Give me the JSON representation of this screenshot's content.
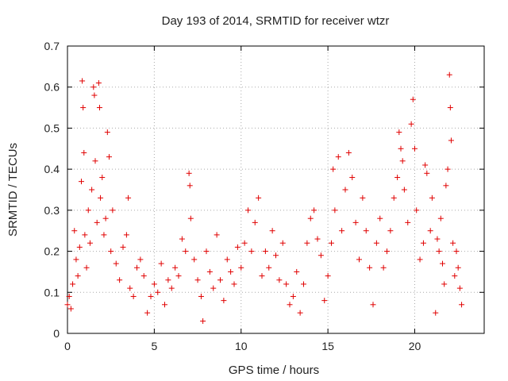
{
  "chart_data": {
    "type": "scatter",
    "title": "Day 193 of 2014, SRMTID for receiver wtzr",
    "xlabel": "GPS time / hours",
    "ylabel": "SRMTID / TECUs",
    "xlim": [
      0,
      24
    ],
    "ylim": [
      0,
      0.7
    ],
    "xticks": [
      0,
      5,
      10,
      15,
      20
    ],
    "xtick_labels": [
      "0",
      "5",
      "10",
      "15",
      "20"
    ],
    "yticks": [
      0,
      0.1,
      0.2,
      0.3,
      0.4,
      0.5,
      0.6,
      0.7
    ],
    "ytick_labels": [
      "0",
      "0.1",
      "0.2",
      "0.3",
      "0.4",
      "0.5",
      "0.6",
      "0.7"
    ],
    "grid": true,
    "marker": "+",
    "color": "#e00000",
    "series": [
      {
        "name": "wtzr",
        "points": [
          [
            0.0,
            0.07
          ],
          [
            0.1,
            0.09
          ],
          [
            0.2,
            0.06
          ],
          [
            0.3,
            0.12
          ],
          [
            0.4,
            0.25
          ],
          [
            0.5,
            0.18
          ],
          [
            0.6,
            0.14
          ],
          [
            0.7,
            0.21
          ],
          [
            0.8,
            0.37
          ],
          [
            0.85,
            0.615
          ],
          [
            0.9,
            0.55
          ],
          [
            0.95,
            0.44
          ],
          [
            1.0,
            0.24
          ],
          [
            1.1,
            0.16
          ],
          [
            1.2,
            0.3
          ],
          [
            1.3,
            0.22
          ],
          [
            1.4,
            0.35
          ],
          [
            1.5,
            0.6
          ],
          [
            1.55,
            0.58
          ],
          [
            1.6,
            0.42
          ],
          [
            1.7,
            0.27
          ],
          [
            1.8,
            0.61
          ],
          [
            1.85,
            0.55
          ],
          [
            1.9,
            0.33
          ],
          [
            2.0,
            0.38
          ],
          [
            2.1,
            0.24
          ],
          [
            2.2,
            0.28
          ],
          [
            2.3,
            0.49
          ],
          [
            2.4,
            0.43
          ],
          [
            2.5,
            0.2
          ],
          [
            2.6,
            0.3
          ],
          [
            2.8,
            0.17
          ],
          [
            3.0,
            0.13
          ],
          [
            3.2,
            0.21
          ],
          [
            3.4,
            0.24
          ],
          [
            3.5,
            0.33
          ],
          [
            3.6,
            0.11
          ],
          [
            3.8,
            0.09
          ],
          [
            4.0,
            0.16
          ],
          [
            4.2,
            0.18
          ],
          [
            4.4,
            0.14
          ],
          [
            4.6,
            0.05
          ],
          [
            4.8,
            0.09
          ],
          [
            5.0,
            0.12
          ],
          [
            5.2,
            0.1
          ],
          [
            5.4,
            0.17
          ],
          [
            5.6,
            0.07
          ],
          [
            5.8,
            0.13
          ],
          [
            6.0,
            0.11
          ],
          [
            6.2,
            0.16
          ],
          [
            6.4,
            0.14
          ],
          [
            6.6,
            0.23
          ],
          [
            6.8,
            0.2
          ],
          [
            7.0,
            0.39
          ],
          [
            7.05,
            0.36
          ],
          [
            7.1,
            0.28
          ],
          [
            7.3,
            0.18
          ],
          [
            7.5,
            0.13
          ],
          [
            7.7,
            0.09
          ],
          [
            7.8,
            0.03
          ],
          [
            8.0,
            0.2
          ],
          [
            8.2,
            0.15
          ],
          [
            8.4,
            0.11
          ],
          [
            8.6,
            0.24
          ],
          [
            8.8,
            0.13
          ],
          [
            9.0,
            0.08
          ],
          [
            9.2,
            0.18
          ],
          [
            9.4,
            0.15
          ],
          [
            9.6,
            0.12
          ],
          [
            9.8,
            0.21
          ],
          [
            10.0,
            0.16
          ],
          [
            10.2,
            0.22
          ],
          [
            10.4,
            0.3
          ],
          [
            10.6,
            0.2
          ],
          [
            10.8,
            0.27
          ],
          [
            11.0,
            0.33
          ],
          [
            11.2,
            0.14
          ],
          [
            11.4,
            0.2
          ],
          [
            11.6,
            0.16
          ],
          [
            11.8,
            0.25
          ],
          [
            12.0,
            0.19
          ],
          [
            12.2,
            0.13
          ],
          [
            12.4,
            0.22
          ],
          [
            12.6,
            0.12
          ],
          [
            12.8,
            0.07
          ],
          [
            13.0,
            0.09
          ],
          [
            13.2,
            0.15
          ],
          [
            13.4,
            0.05
          ],
          [
            13.6,
            0.12
          ],
          [
            13.8,
            0.22
          ],
          [
            14.0,
            0.28
          ],
          [
            14.2,
            0.3
          ],
          [
            14.4,
            0.23
          ],
          [
            14.6,
            0.19
          ],
          [
            14.8,
            0.08
          ],
          [
            15.0,
            0.14
          ],
          [
            15.2,
            0.22
          ],
          [
            15.3,
            0.4
          ],
          [
            15.4,
            0.3
          ],
          [
            15.6,
            0.43
          ],
          [
            15.8,
            0.25
          ],
          [
            16.0,
            0.35
          ],
          [
            16.2,
            0.44
          ],
          [
            16.4,
            0.38
          ],
          [
            16.6,
            0.27
          ],
          [
            16.8,
            0.18
          ],
          [
            17.0,
            0.33
          ],
          [
            17.2,
            0.25
          ],
          [
            17.4,
            0.16
          ],
          [
            17.6,
            0.07
          ],
          [
            17.8,
            0.22
          ],
          [
            18.0,
            0.28
          ],
          [
            18.2,
            0.16
          ],
          [
            18.4,
            0.2
          ],
          [
            18.6,
            0.25
          ],
          [
            18.8,
            0.33
          ],
          [
            19.0,
            0.38
          ],
          [
            19.1,
            0.49
          ],
          [
            19.2,
            0.45
          ],
          [
            19.3,
            0.42
          ],
          [
            19.4,
            0.35
          ],
          [
            19.6,
            0.27
          ],
          [
            19.8,
            0.51
          ],
          [
            19.9,
            0.57
          ],
          [
            20.0,
            0.45
          ],
          [
            20.1,
            0.3
          ],
          [
            20.3,
            0.18
          ],
          [
            20.5,
            0.22
          ],
          [
            20.6,
            0.41
          ],
          [
            20.7,
            0.39
          ],
          [
            20.9,
            0.25
          ],
          [
            21.0,
            0.33
          ],
          [
            21.2,
            0.05
          ],
          [
            21.3,
            0.23
          ],
          [
            21.4,
            0.2
          ],
          [
            21.5,
            0.28
          ],
          [
            21.6,
            0.17
          ],
          [
            21.7,
            0.12
          ],
          [
            21.8,
            0.36
          ],
          [
            21.9,
            0.4
          ],
          [
            22.0,
            0.63
          ],
          [
            22.05,
            0.55
          ],
          [
            22.1,
            0.47
          ],
          [
            22.2,
            0.22
          ],
          [
            22.3,
            0.14
          ],
          [
            22.4,
            0.2
          ],
          [
            22.5,
            0.16
          ],
          [
            22.6,
            0.11
          ],
          [
            22.7,
            0.07
          ]
        ]
      }
    ]
  }
}
